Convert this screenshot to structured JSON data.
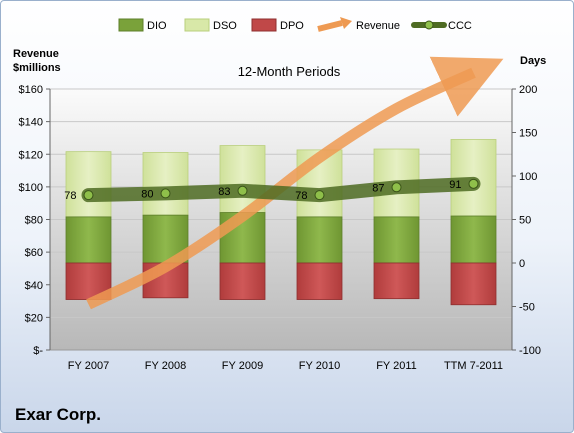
{
  "chart_data": {
    "type": "bar",
    "title": "12-Month Periods",
    "company": "Exar Corp.",
    "categories": [
      "FY 2007",
      "FY 2008",
      "FY 2009",
      "FY 2010",
      "FY 2011",
      "TTM 7-2011"
    ],
    "left_axis": {
      "label_line1": "Revenue",
      "label_line2": "$millions",
      "ylim": [
        0,
        160
      ],
      "ticks": [
        0,
        20,
        40,
        60,
        80,
        100,
        120,
        140,
        160
      ],
      "tick_labels": [
        "$-",
        "$20",
        "$40",
        "$60",
        "$80",
        "$100",
        "$120",
        "$140",
        "$160"
      ]
    },
    "right_axis": {
      "label": "Days",
      "ylim": [
        -100,
        200
      ],
      "ticks": [
        -100,
        -50,
        0,
        50,
        100,
        150,
        200
      ],
      "tick_labels": [
        "-100",
        "-50",
        "0",
        "50",
        "100",
        "150",
        "200"
      ]
    },
    "series": [
      {
        "name": "DIO",
        "color": "#7aa23a",
        "values": [
          53,
          55,
          58,
          53,
          53,
          54
        ]
      },
      {
        "name": "DSO",
        "color": "#d8e8a8",
        "values": [
          75,
          72,
          77,
          77,
          78,
          88
        ]
      },
      {
        "name": "DPO",
        "color": "#c04848",
        "values": [
          -42,
          -40,
          -42,
          -42,
          -41,
          -48
        ]
      },
      {
        "name": "Revenue",
        "color": "#f4a460",
        "values": [
          28,
          51,
          82,
          118,
          148,
          170
        ]
      },
      {
        "name": "CCC",
        "color": "#4e6b22",
        "values": [
          78,
          80,
          83,
          78,
          87,
          91
        ]
      }
    ],
    "data_labels": [
      "78",
      "80",
      "83",
      "78",
      "87",
      "91"
    ],
    "legend_position": "top",
    "grid": true
  }
}
